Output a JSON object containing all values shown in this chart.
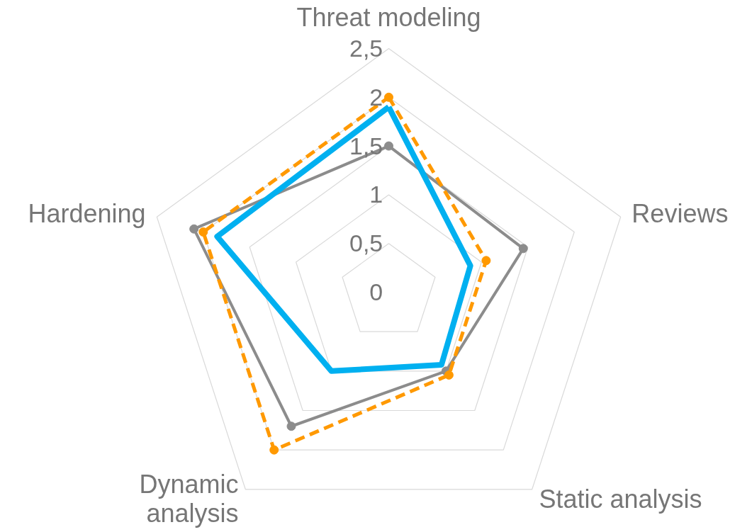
{
  "chart_data": {
    "type": "radar",
    "categories": [
      "Threat modeling",
      "Reviews",
      "Static analysis",
      "Dynamic\nanalysis",
      "Hardening"
    ],
    "ylim": [
      0,
      2.5
    ],
    "yticks": [
      {
        "value": 0,
        "label": "0"
      },
      {
        "value": 0.5,
        "label": "0,5"
      },
      {
        "value": 1,
        "label": "1"
      },
      {
        "value": 1.5,
        "label": "1,5"
      },
      {
        "value": 2,
        "label": "2"
      },
      {
        "value": 2.5,
        "label": "2,5"
      }
    ],
    "grid": true,
    "series": [
      {
        "color": "#8c8c8c",
        "values": [
          1.5,
          1.45,
          1.0,
          1.7,
          2.1
        ],
        "marker": "circle",
        "line_style": "solid"
      },
      {
        "color": "#ff9900",
        "values": [
          2.0,
          1.05,
          1.05,
          2.0,
          2.0
        ],
        "marker": "circle",
        "line_style": "dashed"
      },
      {
        "color": "#00b0f0",
        "values": [
          1.9,
          0.88,
          0.92,
          1.0,
          1.85
        ],
        "marker": "none",
        "line_style": "solid"
      }
    ]
  }
}
